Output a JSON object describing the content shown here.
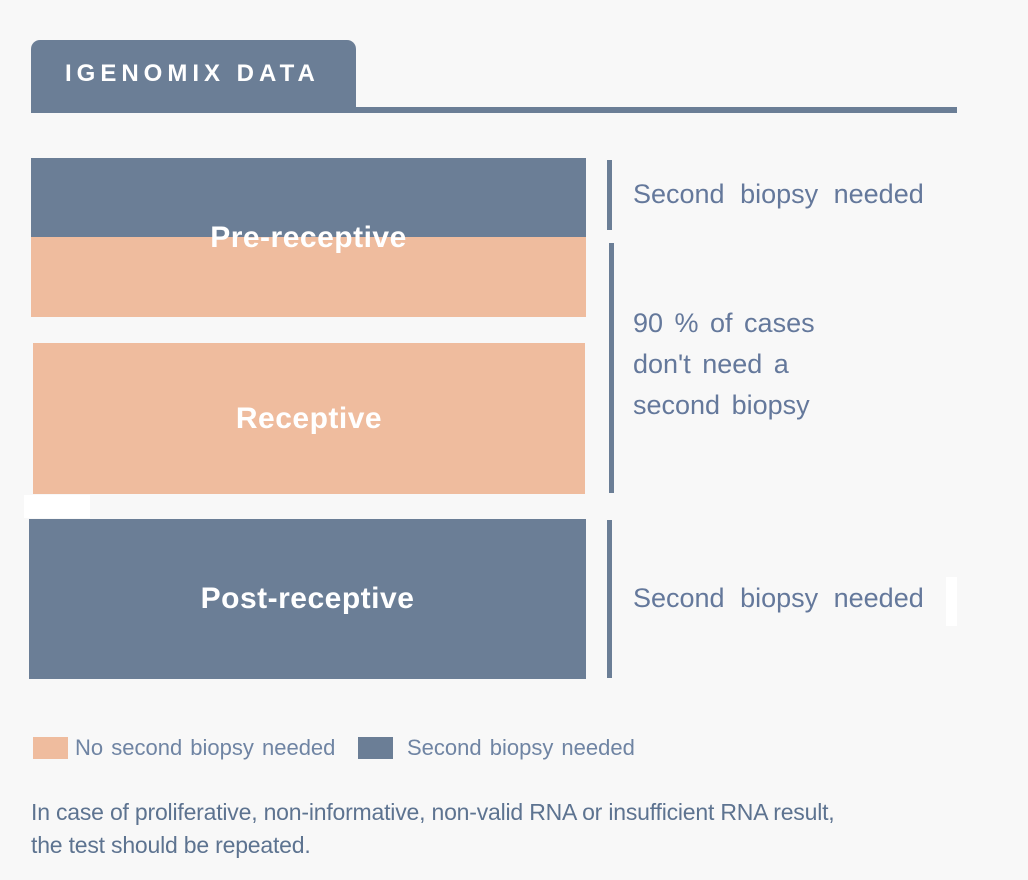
{
  "colors": {
    "background": "#f8f8f8",
    "blue": "#6b7e96",
    "peach": "#efbc9e",
    "annotation_text": "#64789b",
    "bar_label_text": "#ffffff"
  },
  "header": {
    "title": "IGENOMIX DATA"
  },
  "bars": [
    {
      "label": "Pre-receptive",
      "segments": [
        "blue",
        "peach"
      ],
      "meaning": "top half second biopsy needed, bottom half no second biopsy needed"
    },
    {
      "label": "Receptive",
      "segments": [
        "peach"
      ],
      "meaning": "no second biopsy needed"
    },
    {
      "label": "Post-receptive",
      "segments": [
        "blue"
      ],
      "meaning": "second biopsy needed"
    }
  ],
  "annotations": {
    "top": "Second biopsy needed",
    "middle_lines": [
      "90 % of cases",
      "don't need a",
      "second biopsy"
    ],
    "bottom": "Second biopsy needed"
  },
  "legend": [
    {
      "label": "No second biopsy needed",
      "color": "#efbc9e"
    },
    {
      "label": "Second biopsy needed",
      "color": "#6b7e96"
    }
  ],
  "footer": {
    "line1": "In case of proliferative, non-informative, non-valid RNA or insufficient RNA result,",
    "line2": "the test should be repeated."
  }
}
